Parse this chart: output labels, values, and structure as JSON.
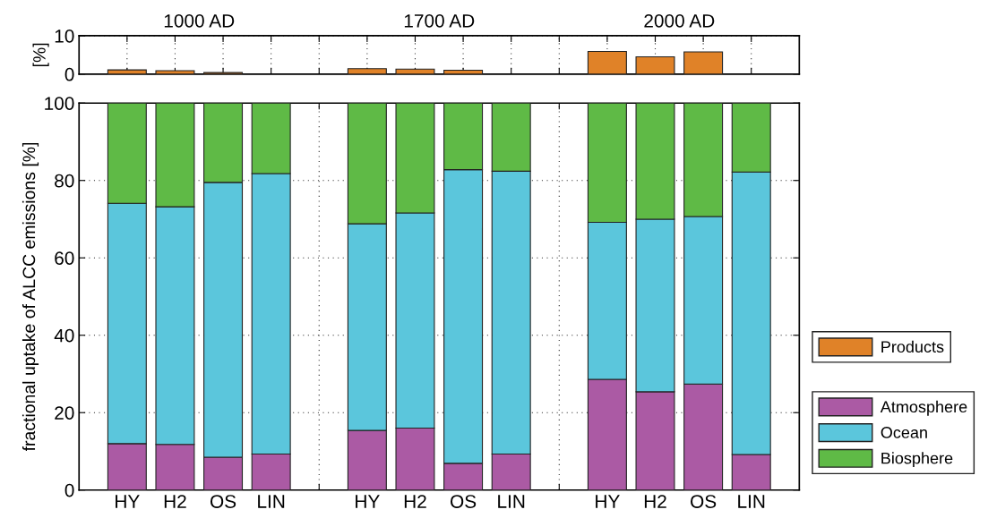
{
  "chart_data": [
    {
      "type": "bar",
      "ylabel": "[%]",
      "categories": [
        null,
        null,
        null,
        null,
        null,
        null,
        null,
        null,
        null,
        null,
        null,
        null,
        null,
        null
      ],
      "annotations": [
        "1000 AD",
        "1700 AD",
        "2000 AD"
      ],
      "series": [
        {
          "name": "Products",
          "color": "#e08228",
          "values": [
            1.1,
            0.9,
            0.4,
            null,
            null,
            1.4,
            1.3,
            1.0,
            null,
            null,
            5.9,
            4.5,
            5.8,
            null
          ]
        }
      ],
      "ylim": [
        0,
        10
      ],
      "yticks": [
        0,
        10
      ],
      "grid": true,
      "legend": "right",
      "tick_labels": "y"
    },
    {
      "type": "bar",
      "stacked": true,
      "ylabel": "fractional uptake of ALCC emissions [%]",
      "categories": [
        "HY",
        "H2",
        "OS",
        "LIN",
        null,
        "HY",
        "H2",
        "OS",
        "LIN",
        null,
        "HY",
        "H2",
        "OS",
        "LIN"
      ],
      "series": [
        {
          "name": "Atmosphere",
          "color": "#ab5aa4",
          "values": [
            12.0,
            11.8,
            8.5,
            9.3,
            null,
            15.4,
            16.0,
            6.9,
            9.3,
            null,
            28.6,
            25.4,
            27.4,
            9.2
          ]
        },
        {
          "name": "Ocean",
          "color": "#5bc6dc",
          "values": [
            62.1,
            61.4,
            71.0,
            72.5,
            null,
            53.4,
            55.6,
            75.9,
            73.1,
            null,
            40.6,
            44.6,
            43.3,
            73.0
          ]
        },
        {
          "name": "Biosphere",
          "color": "#5fba46",
          "values": [
            25.9,
            26.8,
            20.5,
            18.2,
            null,
            31.2,
            28.4,
            17.2,
            17.6,
            null,
            30.8,
            30.0,
            29.3,
            17.8
          ]
        }
      ],
      "ylim": [
        0,
        100
      ],
      "yticks": [
        0,
        20,
        40,
        60,
        80,
        100
      ],
      "grid": true,
      "legend": "right"
    }
  ]
}
